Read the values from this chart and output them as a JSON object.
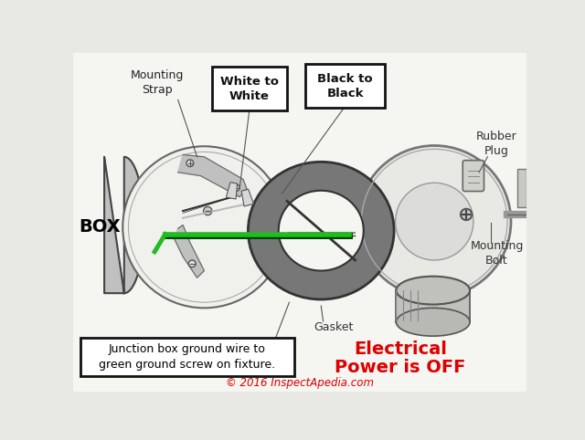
{
  "bg_color": "#e8e8e4",
  "white_bg": "#f5f5f2",
  "diagram_bg": "#f0f0ec",
  "labels": {
    "box": "BOX",
    "mounting_strap": "Mounting\nStrap",
    "white_to_white": "White to\nWhite",
    "black_to_black": "Black to\nBlack",
    "rubber_plug": "Rubber\nPlug",
    "mounting_bolt": "Mounting\nBolt",
    "gasket": "Gasket",
    "ground_note": "Junction box ground wire to\ngreen ground screw on fixture.",
    "electrical": "Electrical\nPower is OFF"
  },
  "copyright": "© 2016 InspectApedia.com",
  "green_wire_color": "#22bb22",
  "dark_gray": "#444444",
  "mid_gray": "#888888",
  "light_gray": "#cccccc",
  "black": "#111111",
  "red": "#dd0000",
  "label_box_color": "#ffffff",
  "box_shape_color": "#999999",
  "circle_outline": "#666666",
  "gasket_fill": "#666666",
  "gasket_inner": "#aaaaaa"
}
